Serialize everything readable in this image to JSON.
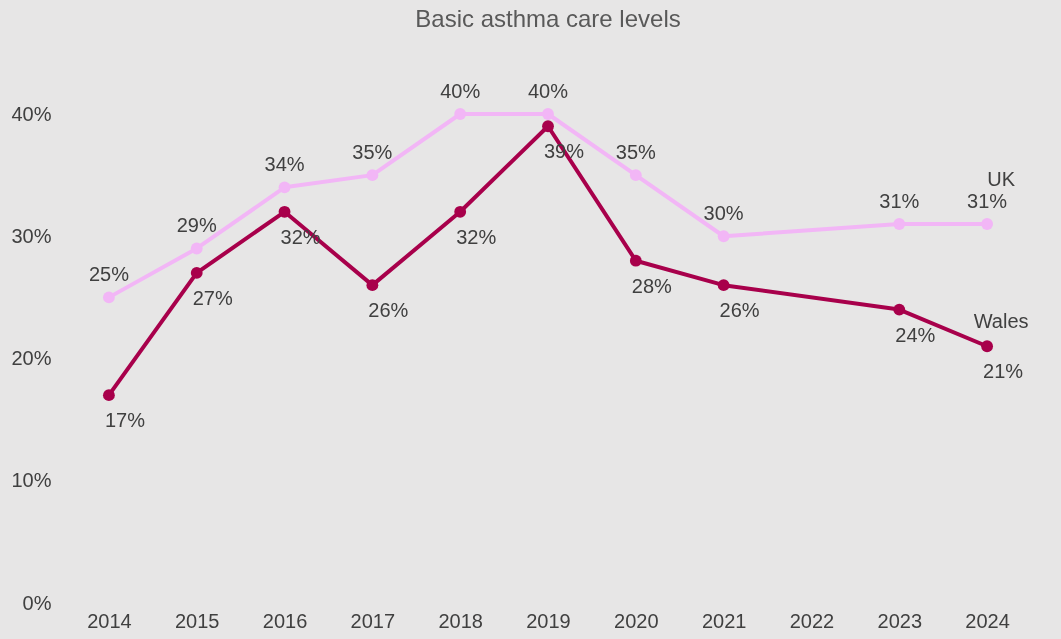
{
  "chart_data": {
    "type": "line",
    "title": "Basic asthma care levels",
    "categories": [
      "2014",
      "2015",
      "2016",
      "2017",
      "2018",
      "2019",
      "2020",
      "2021",
      "2022",
      "2023",
      "2024"
    ],
    "series": [
      {
        "name": "UK",
        "color": "#f2b6f6",
        "values": [
          25,
          29,
          34,
          35,
          40,
          40,
          35,
          30,
          null,
          31,
          31
        ],
        "value_labels": [
          "25%",
          "29%",
          "34%",
          "35%",
          "40%",
          "40%",
          "35%",
          "30%",
          null,
          "31%",
          "31%"
        ]
      },
      {
        "name": "Wales",
        "color": "#a8004b",
        "values": [
          17,
          27,
          32,
          26,
          32,
          39,
          28,
          26,
          null,
          24,
          21
        ],
        "value_labels": [
          "17%",
          "27%",
          "32%",
          "26%",
          "32%",
          "39%",
          "28%",
          "26%",
          null,
          "24%",
          "21%"
        ]
      }
    ],
    "ylim": [
      0,
      40
    ],
    "yticks": [
      {
        "value": 0,
        "label": "0%"
      },
      {
        "value": 10,
        "label": "10%"
      },
      {
        "value": 20,
        "label": "20%"
      },
      {
        "value": 30,
        "label": "30%"
      },
      {
        "value": 40,
        "label": "40%"
      }
    ],
    "grid": false,
    "marker": "circle",
    "line_style": "solid"
  }
}
